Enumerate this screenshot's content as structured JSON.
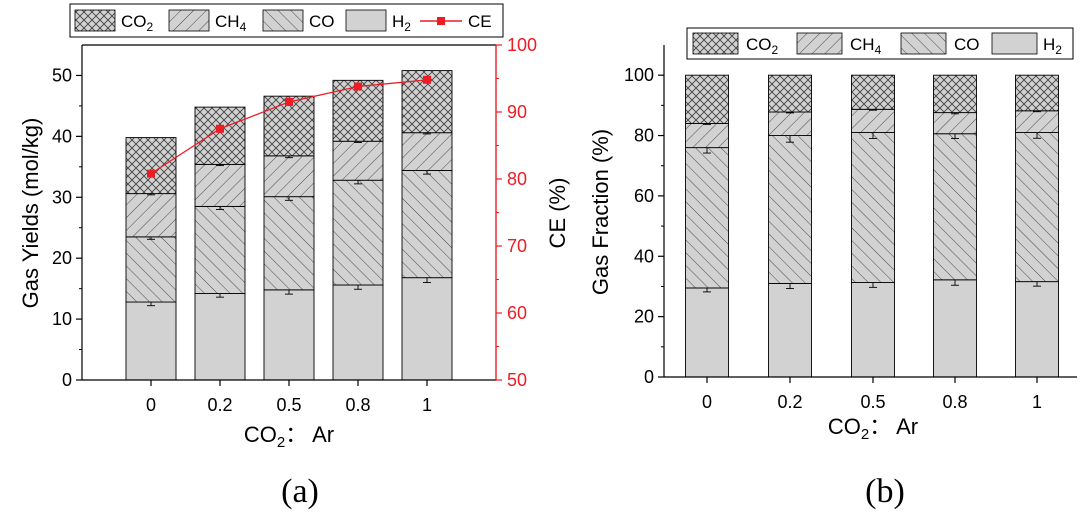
{
  "panels": {
    "a_label": "(a)",
    "b_label": "(b)"
  },
  "legend": {
    "co2_main": "CO",
    "co2_sub": "2",
    "ch4_main": "CH",
    "ch4_sub": "4",
    "co": "CO",
    "h2_main": "H",
    "h2_sub": "2",
    "ce": "CE"
  },
  "axes": {
    "a_ylabel": "Gas Yields (mol/kg)",
    "a_y2label": "CE (%)",
    "b_ylabel": "Gas Fraction (%)",
    "xlabel_main": "CO",
    "xlabel_sub": "2",
    "xlabel_rest": "： Ar"
  },
  "colors": {
    "red": "#ee1c25",
    "bar_fill": "#d2d2d2",
    "stroke": "#000000"
  },
  "chart_data": [
    {
      "type": "bar",
      "stacked": true,
      "categories": [
        "0",
        "0.2",
        "0.5",
        "0.8",
        "1"
      ],
      "xlabel": "CO2： Ar",
      "ylabel": "Gas Yields (mol/kg)",
      "ylim": [
        0,
        55
      ],
      "yticks": [
        0,
        10,
        20,
        30,
        40,
        50
      ],
      "series": [
        {
          "name": "H2",
          "pattern": "solid",
          "values": [
            12.8,
            14.2,
            14.8,
            15.6,
            16.8
          ],
          "err": [
            0.6,
            0.6,
            0.7,
            0.7,
            0.8
          ]
        },
        {
          "name": "CO",
          "pattern": "hatch-fwd",
          "values": [
            10.7,
            14.3,
            15.3,
            17.2,
            17.6
          ],
          "err": [
            0.4,
            0.5,
            0.6,
            0.6,
            0.6
          ]
        },
        {
          "name": "CH4",
          "pattern": "hatch-back",
          "values": [
            7.1,
            6.9,
            6.7,
            6.4,
            6.2
          ],
          "err": [
            0.2,
            0.2,
            0.3,
            0.2,
            0.2
          ]
        },
        {
          "name": "CO2",
          "pattern": "crosshatch",
          "values": [
            9.2,
            9.4,
            9.8,
            10.0,
            10.2
          ],
          "err": [
            0,
            0,
            0,
            0,
            0
          ]
        }
      ],
      "secondary_axis": {
        "name": "CE",
        "type": "line",
        "ylabel": "CE (%)",
        "ylim": [
          50,
          100
        ],
        "yticks": [
          50,
          60,
          70,
          80,
          90,
          100
        ],
        "values": [
          80.8,
          87.5,
          91.5,
          93.8,
          94.8
        ]
      },
      "legend_position": "top"
    },
    {
      "type": "bar",
      "stacked": true,
      "categories": [
        "0",
        "0.2",
        "0.5",
        "0.8",
        "1"
      ],
      "xlabel": "CO2： Ar",
      "ylabel": "Gas Fraction (%)",
      "ylim": [
        0,
        110
      ],
      "yticks": [
        0,
        20,
        40,
        60,
        80,
        100
      ],
      "series": [
        {
          "name": "H2",
          "pattern": "solid",
          "values": [
            29.5,
            31.0,
            31.3,
            32.2,
            31.6
          ],
          "err": [
            1.3,
            1.7,
            1.6,
            1.8,
            1.5
          ]
        },
        {
          "name": "CO",
          "pattern": "hatch-fwd",
          "values": [
            46.5,
            49.0,
            49.7,
            48.4,
            49.4
          ],
          "err": [
            1.8,
            2.2,
            2.0,
            1.6,
            1.9
          ]
        },
        {
          "name": "CH4",
          "pattern": "hatch-back",
          "values": [
            8.0,
            7.8,
            7.7,
            7.0,
            7.2
          ],
          "err": [
            0.3,
            0.3,
            0.3,
            0.4,
            0.3
          ]
        },
        {
          "name": "CO2",
          "pattern": "crosshatch",
          "values": [
            16.0,
            12.2,
            11.3,
            12.4,
            11.8
          ],
          "err": [
            0,
            0,
            0,
            0,
            0
          ]
        }
      ],
      "legend_position": "top"
    }
  ]
}
